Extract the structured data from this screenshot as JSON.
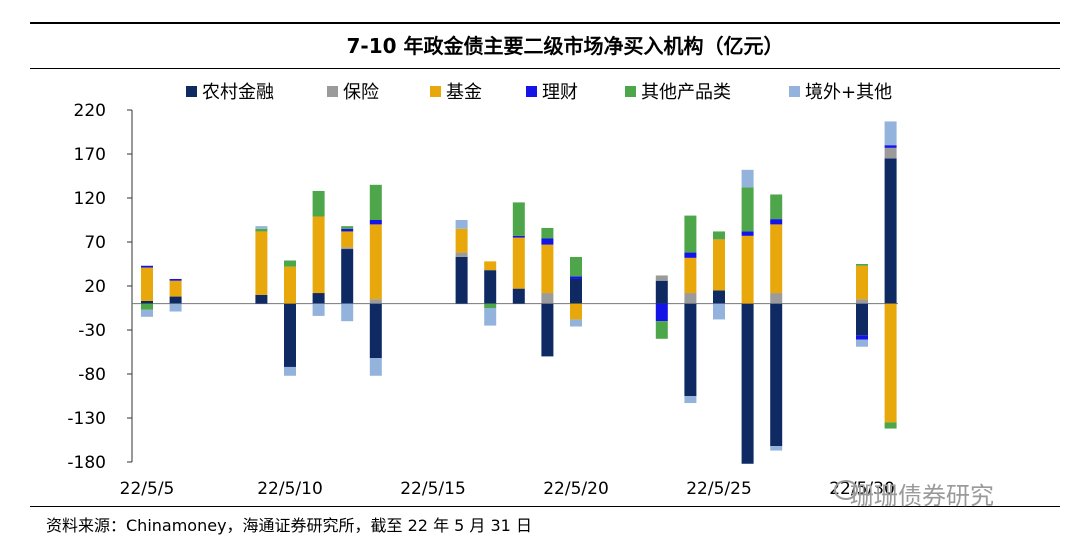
{
  "chart_data": {
    "type": "bar",
    "title": "7-10 年政金债主要二级市场净买入机构（亿元）",
    "xlabel": "",
    "ylabel": "",
    "ylim": [
      -180,
      220
    ],
    "yticks": [
      220,
      170,
      120,
      70,
      20,
      -30,
      -80,
      -130,
      -180
    ],
    "tick_labels": {
      "22/5/5": 0,
      "22/5/10": 5,
      "22/5/15": 10,
      "22/5/20": 15,
      "22/5/25": 20,
      "22/5/30": 25
    },
    "legend_placement": "top",
    "categories": [
      "22/5/5",
      "22/5/6",
      "22/5/7",
      "22/5/8",
      "22/5/9",
      "22/5/10",
      "22/5/11",
      "22/5/12",
      "22/5/13",
      "22/5/14",
      "22/5/15",
      "22/5/16",
      "22/5/17",
      "22/5/18",
      "22/5/19",
      "22/5/20",
      "22/5/21",
      "22/5/22",
      "22/5/23",
      "22/5/24",
      "22/5/25",
      "22/5/26",
      "22/5/27",
      "22/5/28",
      "22/5/29",
      "22/5/30",
      "22/5/31"
    ],
    "series": [
      {
        "name": "农村金融",
        "color": "#0f2a63",
        "values": [
          3,
          8,
          null,
          null,
          10,
          -72,
          12,
          62,
          -62,
          null,
          null,
          53,
          38,
          17,
          -60,
          28,
          null,
          null,
          26,
          -105,
          15,
          -182,
          -162,
          null,
          null,
          -36,
          165
        ]
      },
      {
        "name": "保险",
        "color": "#9b9b9b",
        "values": [
          null,
          null,
          null,
          null,
          null,
          null,
          null,
          2,
          5,
          null,
          null,
          5,
          0,
          0,
          12,
          0,
          null,
          null,
          6,
          12,
          0,
          0,
          12,
          null,
          null,
          5,
          12
        ]
      },
      {
        "name": "基金",
        "color": "#e8a80c",
        "values": [
          38,
          18,
          null,
          null,
          72,
          42,
          87,
          18,
          85,
          null,
          null,
          27,
          10,
          58,
          55,
          -18,
          null,
          null,
          0,
          40,
          58,
          77,
          78,
          null,
          null,
          38,
          -135
        ]
      },
      {
        "name": "理财",
        "color": "#1414e6",
        "values": [
          2,
          2,
          null,
          null,
          0,
          0,
          0,
          3,
          5,
          null,
          null,
          0,
          0,
          2,
          7,
          3,
          null,
          null,
          -20,
          6,
          0,
          5,
          6,
          null,
          null,
          -5,
          3
        ]
      },
      {
        "name": "其他产品类",
        "color": "#4ea64a",
        "values": [
          -7,
          null,
          null,
          null,
          3,
          7,
          29,
          3,
          40,
          null,
          null,
          0,
          -5,
          38,
          12,
          22,
          null,
          null,
          -20,
          42,
          9,
          50,
          28,
          null,
          null,
          2,
          -7
        ]
      },
      {
        "name": "境外+其他",
        "color": "#93b3dc",
        "values": [
          -8,
          -9,
          null,
          null,
          3,
          -10,
          -14,
          -20,
          -20,
          null,
          null,
          10,
          -20,
          0,
          0,
          -8,
          null,
          null,
          0,
          -8,
          -18,
          20,
          -5,
          null,
          null,
          -8,
          27
        ]
      }
    ]
  },
  "footer": {
    "source": "资料来源：Chinamoney，海通证券研究所，截至 22 年 5 月 31 日"
  },
  "watermark": {
    "text": "珊珊债券研究"
  }
}
